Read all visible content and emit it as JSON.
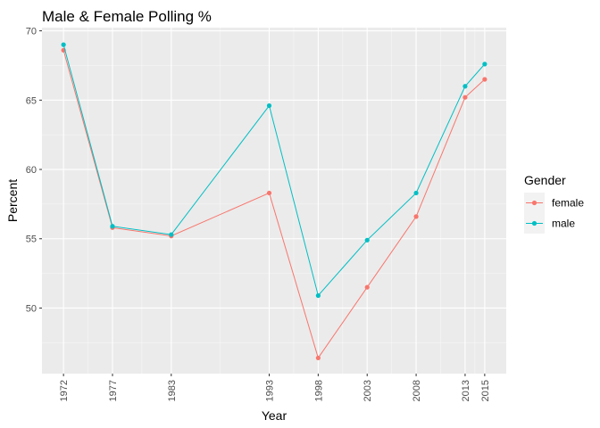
{
  "chart_data": {
    "type": "line",
    "title": "Male & Female Polling %",
    "xlabel": "Year",
    "ylabel": "Percent",
    "x": [
      1972,
      1977,
      1983,
      1993,
      1998,
      2003,
      2008,
      2013,
      2015
    ],
    "x_tick_labels": [
      "1972",
      "1977",
      "1983",
      "1993",
      "1998",
      "2003",
      "2008",
      "2013",
      "2015"
    ],
    "x_range": [
      1969.8,
      2017.2
    ],
    "y_ticks": [
      50,
      55,
      60,
      65,
      70
    ],
    "y_tick_labels": [
      "50",
      "55",
      "60",
      "65",
      "70"
    ],
    "y_range": [
      45.27,
      70.23
    ],
    "grid": true,
    "legend": {
      "title": "Gender",
      "position": "right"
    },
    "series": [
      {
        "name": "female",
        "color": "#F8766D",
        "values": [
          68.6,
          55.8,
          55.2,
          58.3,
          46.4,
          51.5,
          56.6,
          65.2,
          66.5
        ]
      },
      {
        "name": "male",
        "color": "#00BFC4",
        "values": [
          69.0,
          55.9,
          55.3,
          64.6,
          50.9,
          54.9,
          58.3,
          66.0,
          67.6
        ]
      }
    ]
  }
}
